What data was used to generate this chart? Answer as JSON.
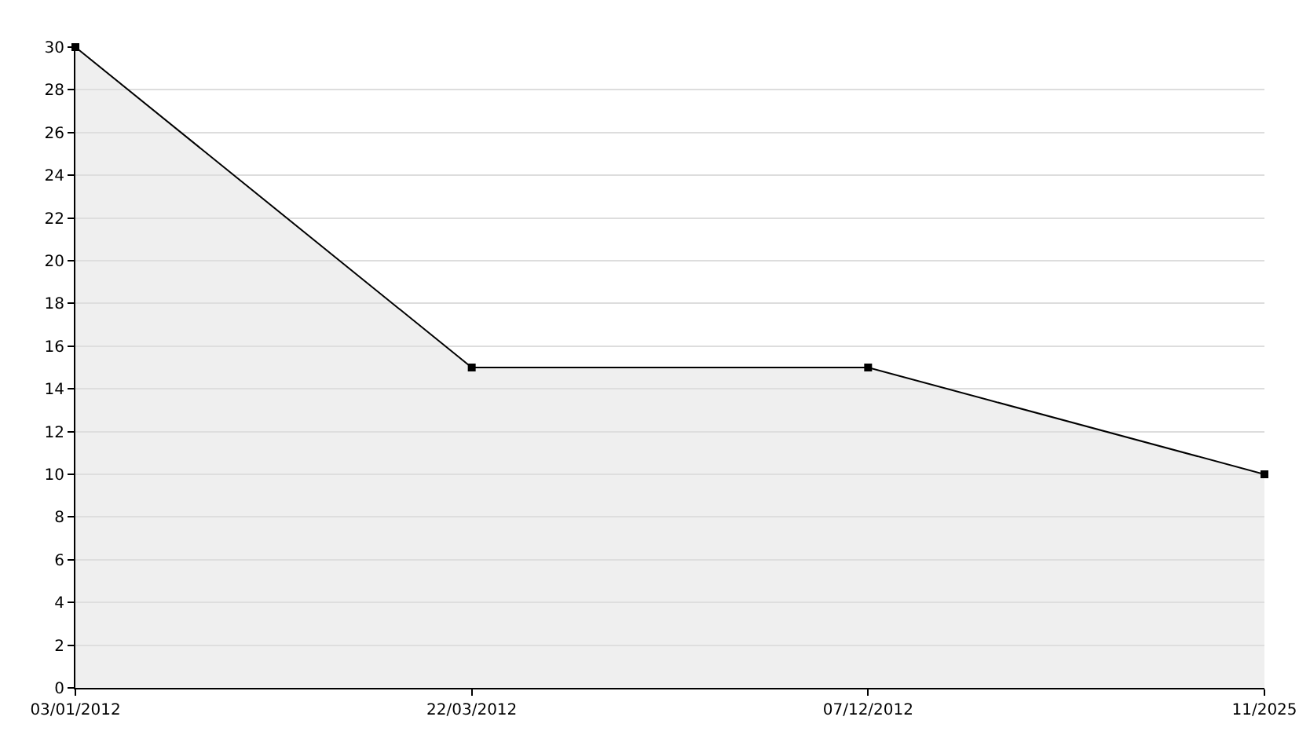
{
  "chart_data": {
    "type": "area",
    "categories": [
      "03/01/2012",
      "22/03/2012",
      "07/12/2012",
      "11/2025"
    ],
    "values": [
      30,
      15,
      15,
      10
    ],
    "color": "#000000",
    "ylim": [
      0,
      30
    ],
    "yticks": [
      0,
      2,
      4,
      6,
      8,
      10,
      12,
      14,
      16,
      18,
      20,
      22,
      24,
      26,
      28,
      30
    ],
    "grid": "y",
    "marker": "square",
    "line_style": "solid"
  }
}
